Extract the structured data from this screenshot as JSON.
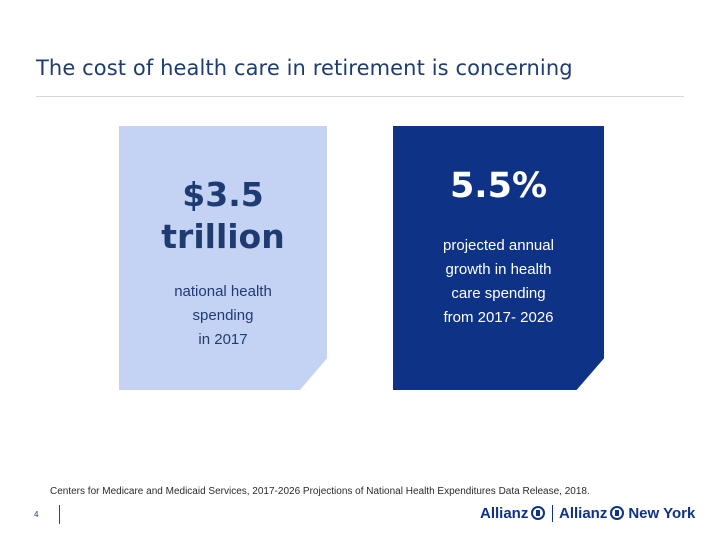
{
  "slide": {
    "title": "The cost of health care in retirement is concerning",
    "page_number": "4"
  },
  "cards": [
    {
      "big_value_line1": "$3.5",
      "big_value_line2": "trillion",
      "description_lines": [
        "national health",
        "spending",
        "in 2017"
      ],
      "color": "#c4d2f4"
    },
    {
      "big_value": "5.5%",
      "description_lines": [
        "projected annual",
        "growth in health",
        "care spending",
        "from 2017- 2026"
      ],
      "color": "#0e3386"
    }
  ],
  "footer": {
    "source": "Centers for Medicare and Medicaid Services, 2017-2026 Projections of National Health Expenditures Data Release, 2018.",
    "logo_1": "Allianz",
    "logo_2": "Allianz",
    "logo_2_suffix": "New York",
    "logo_icon": "allianz-eagle-icon"
  }
}
